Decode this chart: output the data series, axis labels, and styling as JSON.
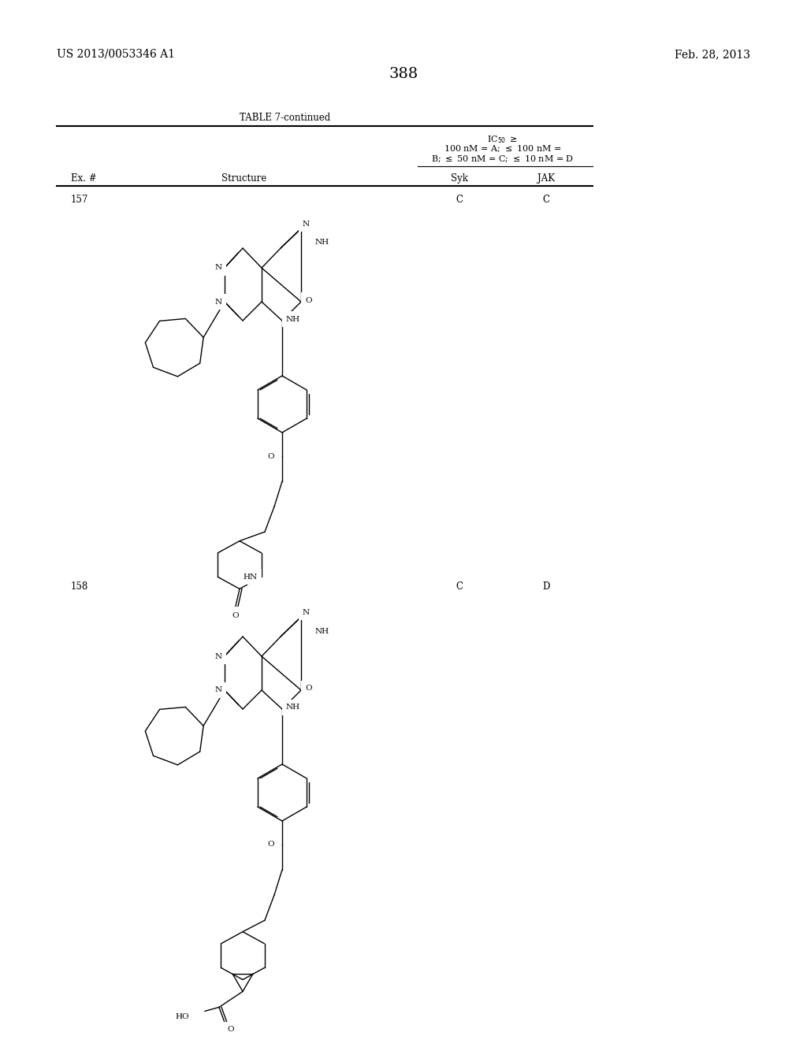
{
  "page_number": "388",
  "patent_number": "US 2013/0053346 A1",
  "patent_date": "Feb. 28, 2013",
  "table_title": "TABLE 7-continued",
  "col_ex": "Ex. #",
  "col_structure": "Structure",
  "col_syk": "Syk",
  "col_jak": "JAK",
  "row1_ex": "157",
  "row1_syk": "C",
  "row1_jak": "C",
  "row2_ex": "158",
  "row2_syk": "C",
  "row2_jak": "D",
  "bg_color": "#ffffff",
  "text_color": "#000000",
  "line_color": "#000000"
}
